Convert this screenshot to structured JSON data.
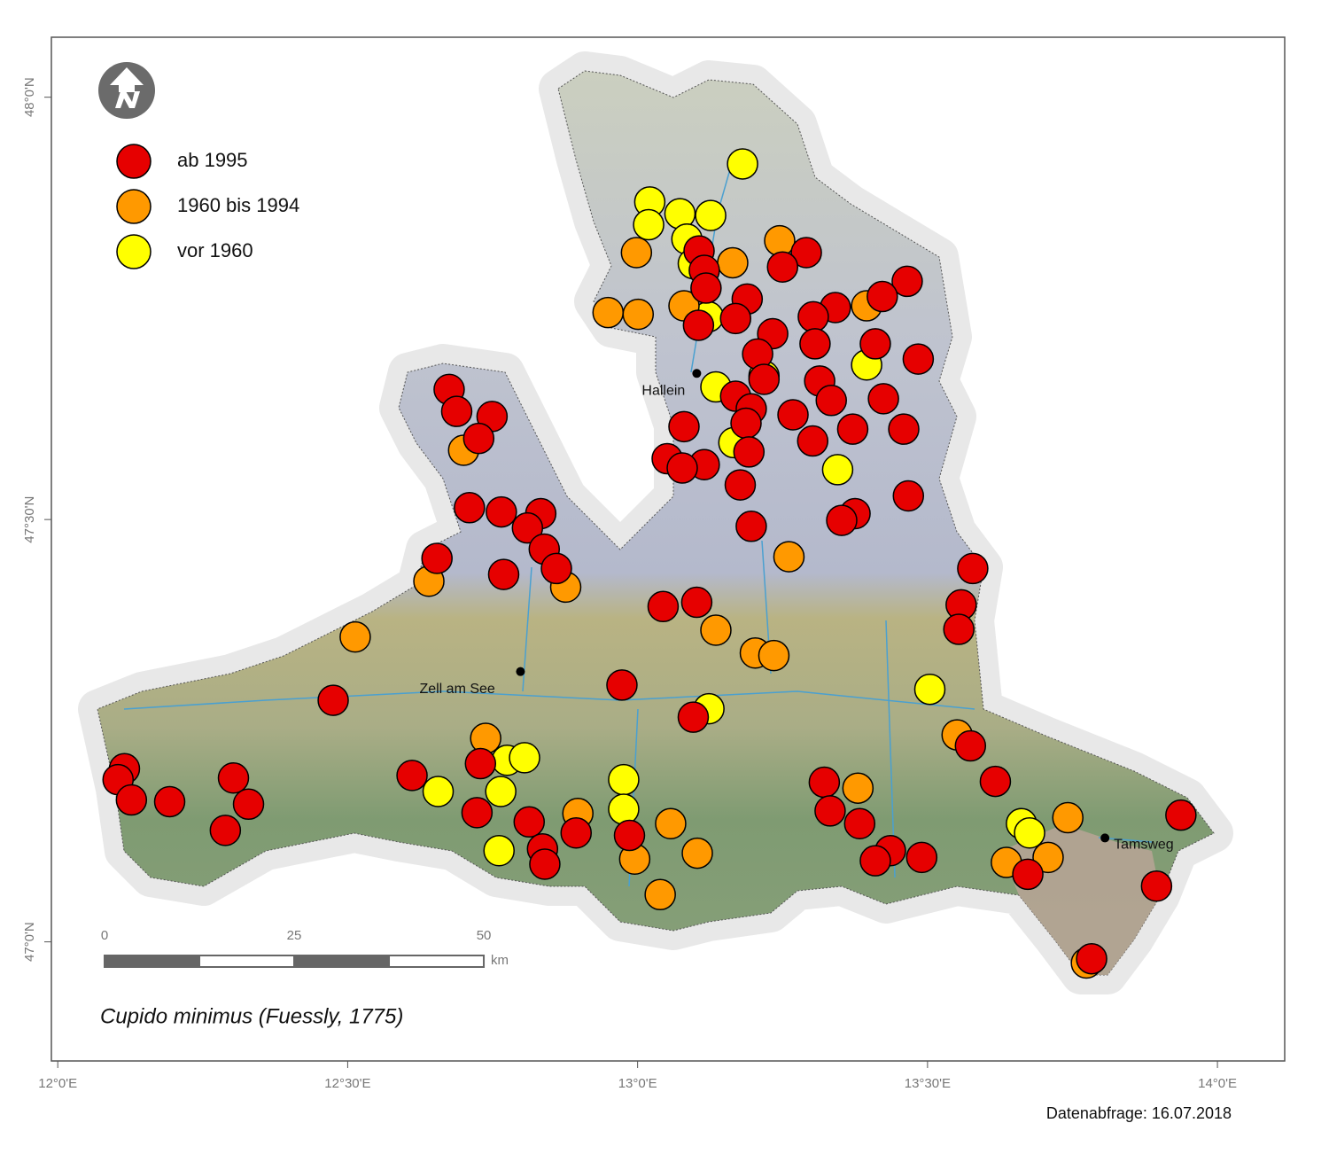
{
  "chart_data": {
    "type": "scatter",
    "title": "Cupido minimus (Fuessly, 1775)",
    "footnote": "Datenabfrage: 16.07.2018",
    "xlim": [
      11.989,
      14.116
    ],
    "ylim": [
      46.859,
      48.071
    ],
    "xticks": [
      {
        "value": 12,
        "label": "12°0'E"
      },
      {
        "value": 12.5,
        "label": "12°30'E"
      },
      {
        "value": 13,
        "label": "13°0'E"
      },
      {
        "value": 13.5,
        "label": "13°30'E"
      },
      {
        "value": 14,
        "label": "14°0'E"
      }
    ],
    "yticks": [
      {
        "value": 47,
        "label": "47°0'N"
      },
      {
        "value": 47.5,
        "label": "47°30'N"
      },
      {
        "value": 48,
        "label": "48°0'N"
      }
    ],
    "series": [
      {
        "name": "ab 1995",
        "color": "#e60000",
        "x": [
          13.106,
          13.291,
          13.25,
          13.115,
          13.465,
          13.118,
          13.189,
          13.422,
          13.341,
          13.303,
          13.169,
          13.105,
          13.233,
          13.306,
          13.41,
          13.207,
          13.484,
          13.218,
          13.314,
          12.675,
          13.169,
          13.424,
          13.334,
          13.196,
          12.688,
          12.749,
          13.268,
          13.187,
          13.459,
          13.08,
          13.371,
          12.726,
          13.302,
          13.192,
          13.051,
          13.115,
          13.077,
          13.177,
          13.467,
          12.71,
          12.765,
          12.833,
          12.81,
          13.375,
          13.352,
          13.196,
          12.839,
          12.654,
          12.86,
          12.769,
          13.578,
          13.044,
          13.102,
          13.558,
          13.554,
          12.973,
          12.475,
          13.096,
          13.574,
          12.115,
          12.104,
          12.303,
          12.611,
          12.729,
          13.617,
          13.322,
          12.127,
          12.193,
          12.329,
          13.332,
          12.723,
          12.813,
          12.289,
          12.986,
          12.894,
          13.383,
          12.836,
          13.436,
          13.49,
          12.84,
          13.41,
          13.673,
          13.937,
          13.895,
          13.783
        ],
        "values": [
          47.818,
          47.816,
          47.799,
          47.795,
          47.782,
          47.774,
          47.761,
          47.764,
          47.751,
          47.74,
          47.738,
          47.73,
          47.72,
          47.708,
          47.708,
          47.696,
          47.69,
          47.666,
          47.664,
          47.654,
          47.646,
          47.643,
          47.641,
          47.631,
          47.628,
          47.622,
          47.624,
          47.614,
          47.607,
          47.61,
          47.607,
          47.596,
          47.593,
          47.58,
          47.572,
          47.565,
          47.561,
          47.541,
          47.528,
          47.514,
          47.509,
          47.507,
          47.49,
          47.507,
          47.499,
          47.492,
          47.465,
          47.454,
          47.442,
          47.435,
          47.442,
          47.397,
          47.402,
          47.399,
          47.37,
          47.304,
          47.286,
          47.266,
          47.232,
          47.205,
          47.192,
          47.194,
          47.197,
          47.211,
          47.19,
          47.189,
          47.168,
          47.166,
          47.163,
          47.155,
          47.153,
          47.142,
          47.132,
          47.126,
          47.129,
          47.14,
          47.11,
          47.108,
          47.1,
          47.092,
          47.096,
          47.08,
          47.15,
          47.066,
          46.98
        ]
      },
      {
        "name": "1960 bis 1994",
        "color": "#ff9900",
        "x": [
          12.998,
          13.245,
          13.164,
          12.949,
          13.001,
          13.08,
          13.395,
          12.7,
          12.64,
          12.876,
          13.261,
          12.513,
          13.135,
          13.203,
          13.235,
          13.551,
          12.738,
          13.38,
          12.897,
          13.057,
          12.995,
          13.103,
          13.039,
          13.636,
          13.708,
          13.742,
          13.774
        ],
        "values": [
          47.816,
          47.83,
          47.804,
          47.745,
          47.743,
          47.753,
          47.753,
          47.582,
          47.427,
          47.42,
          47.456,
          47.361,
          47.369,
          47.342,
          47.339,
          47.245,
          47.241,
          47.182,
          47.152,
          47.14,
          47.098,
          47.105,
          47.056,
          47.094,
          47.1,
          47.147,
          46.975
        ]
      },
      {
        "name": "vor 1960",
        "color": "#ffff00",
        "x": [
          13.181,
          13.021,
          13.019,
          13.073,
          13.126,
          13.085,
          13.096,
          13.122,
          13.395,
          13.135,
          13.218,
          13.166,
          13.345,
          13.504,
          13.123,
          12.775,
          12.805,
          12.656,
          12.764,
          12.976,
          12.976,
          12.761,
          13.662,
          13.676
        ],
        "values": [
          47.921,
          47.876,
          47.849,
          47.862,
          47.86,
          47.832,
          47.803,
          47.74,
          47.683,
          47.657,
          47.67,
          47.591,
          47.559,
          47.299,
          47.276,
          47.215,
          47.218,
          47.178,
          47.178,
          47.192,
          47.157,
          47.108,
          47.14,
          47.129
        ]
      }
    ],
    "places": [
      {
        "label": "Hallein",
        "lon": 13.102,
        "lat": 47.673
      },
      {
        "label": "Zell am See",
        "lon": 12.798,
        "lat": 47.32
      },
      {
        "label": "Tamsweg",
        "lon": 13.806,
        "lat": 47.123
      }
    ],
    "scale_bar": {
      "ticks": [
        0,
        25,
        50
      ],
      "unit": "km"
    }
  }
}
